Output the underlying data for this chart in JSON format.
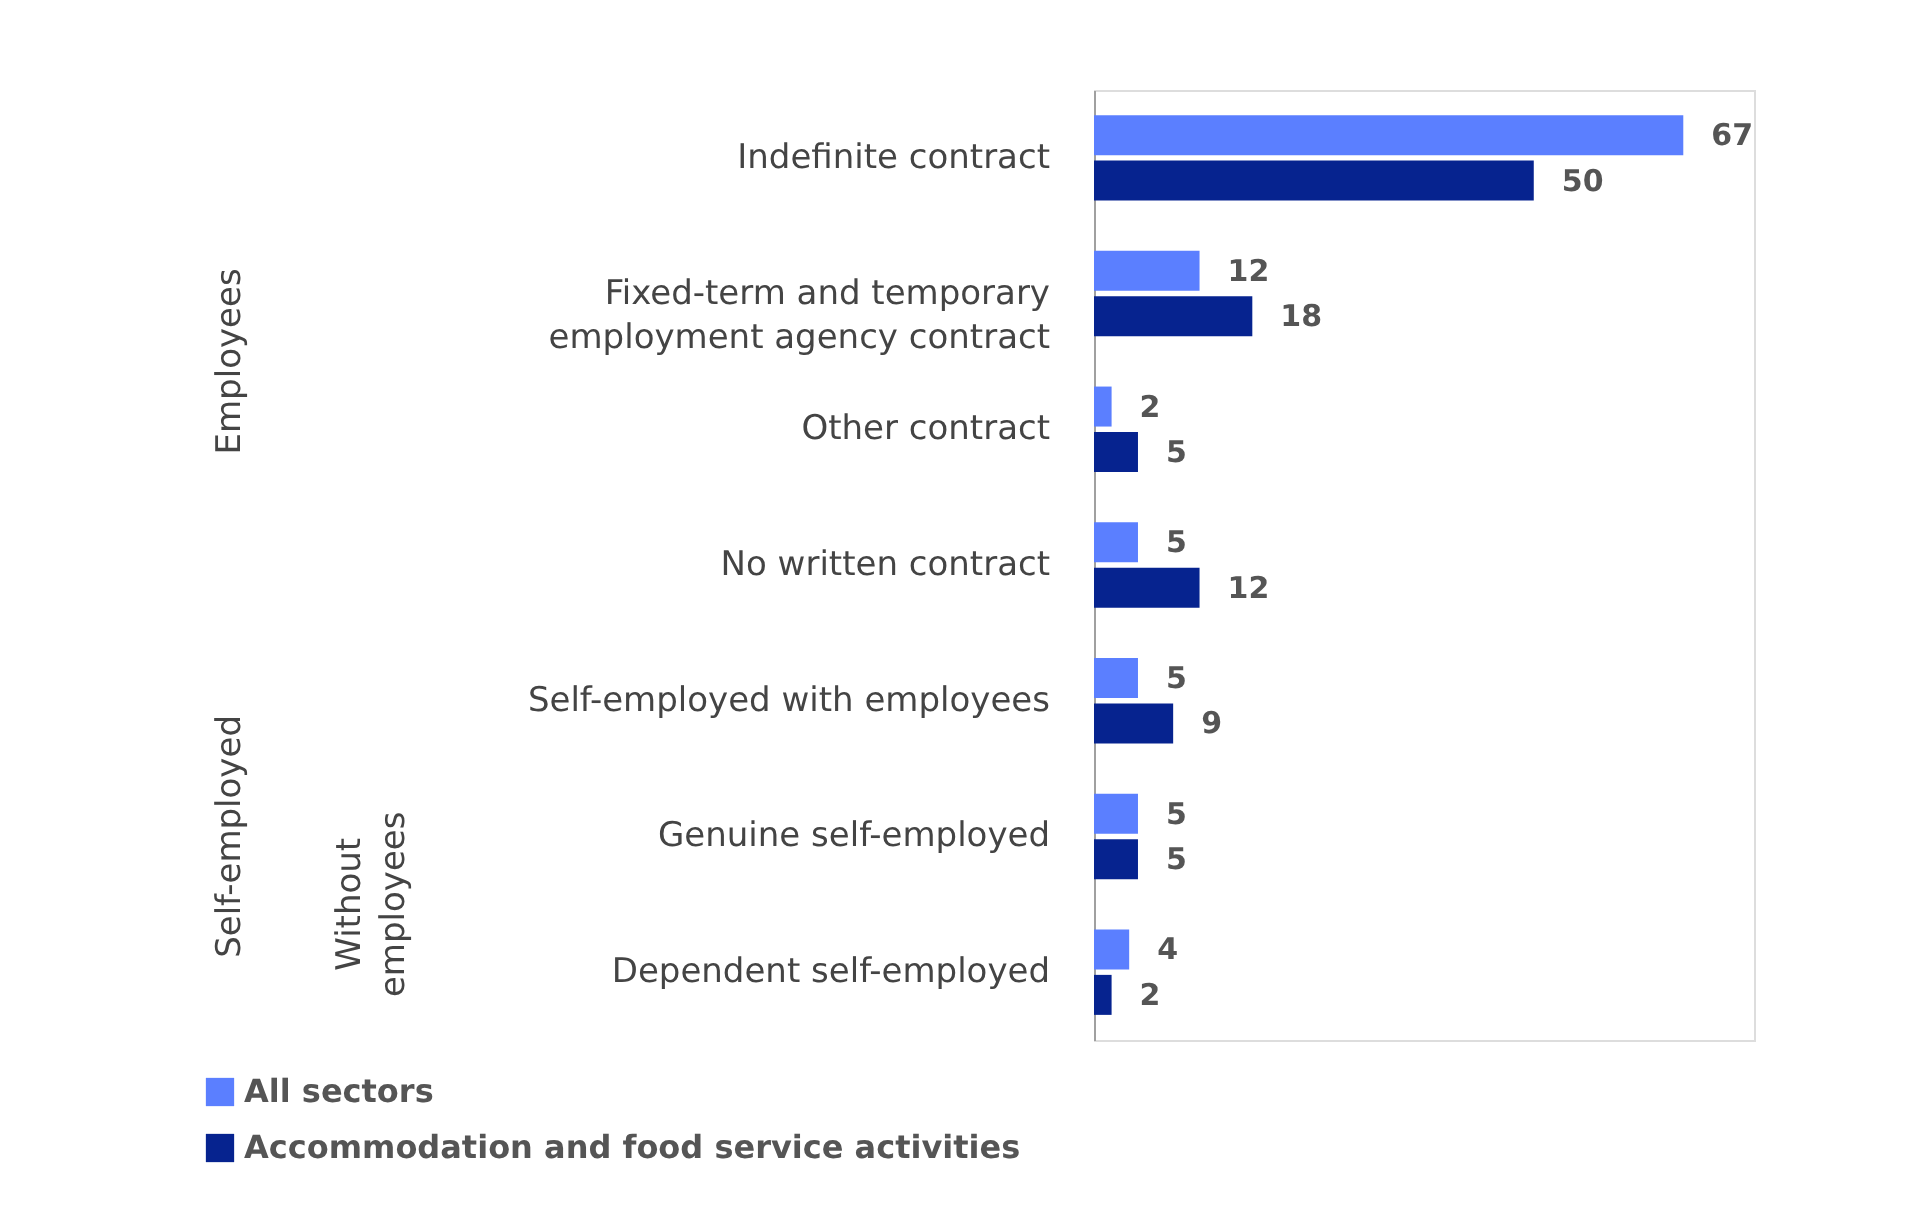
{
  "chart_data": {
    "type": "bar",
    "orientation": "horizontal",
    "categories": [
      "Indefinite contract",
      "Fixed-term and temporary employment agency contract",
      "Other contract",
      "No written contract",
      "Self-employed with employees",
      "Genuine self-employed",
      "Dependent self-employed"
    ],
    "series": [
      {
        "name": "All sectors",
        "color": "#5b7fff",
        "values": [
          67,
          12,
          2,
          5,
          5,
          5,
          4
        ]
      },
      {
        "name": "Accommodation and food service activities",
        "color": "#06238f",
        "values": [
          50,
          18,
          5,
          12,
          9,
          5,
          2
        ]
      }
    ],
    "data_labels": true,
    "legend": "bottom left",
    "annotations": [
      "Employees",
      "Self-employed",
      "Without employees"
    ]
  }
}
